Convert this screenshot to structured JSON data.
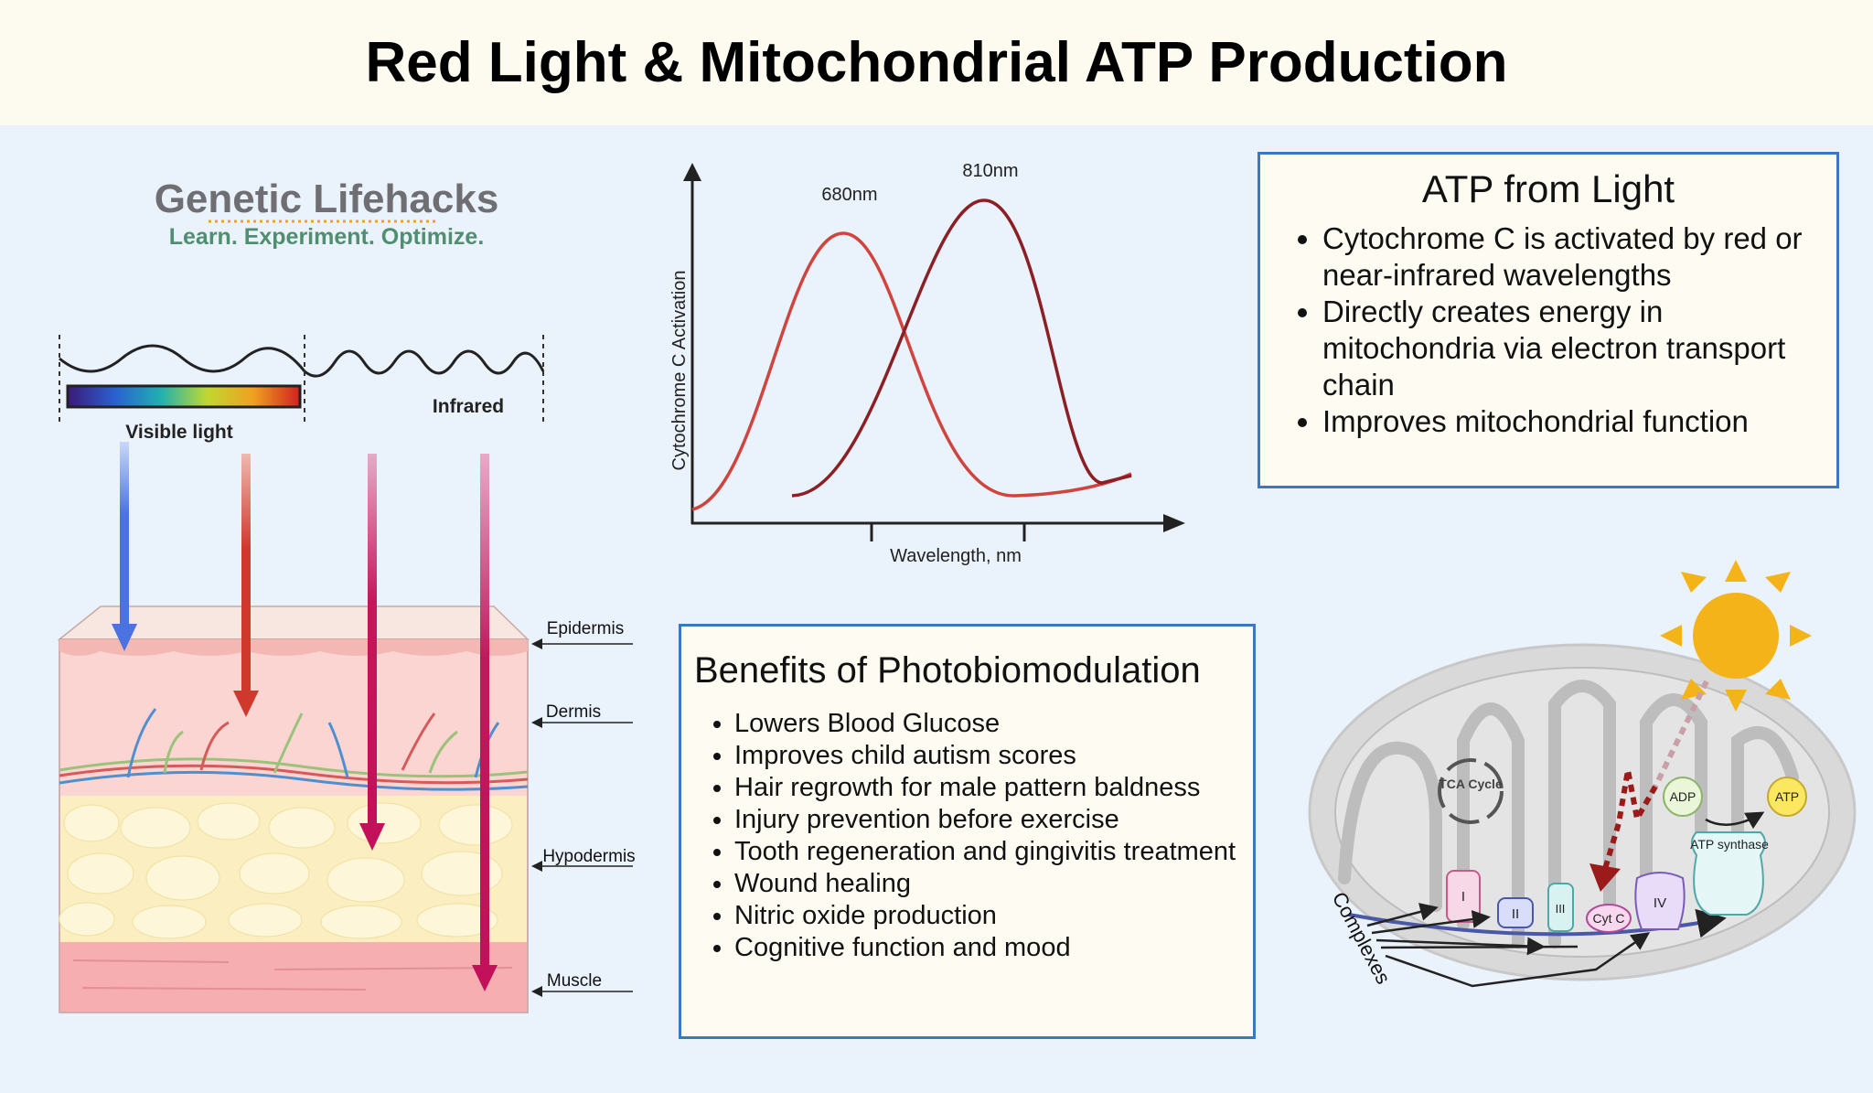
{
  "header": {
    "title": "Red Light & Mitochondrial ATP Production"
  },
  "logo": {
    "name": "Genetic Lifehacks",
    "tagline": "Learn. Experiment. Optimize."
  },
  "spectrum": {
    "visible": "Visible light",
    "infrared": "Infrared"
  },
  "skin": {
    "layers": [
      "Epidermis",
      "Dermis",
      "Hypodermis",
      "Muscle"
    ]
  },
  "graph": {
    "peaks": [
      "680nm",
      "810nm"
    ],
    "x_label": "Wavelength, nm",
    "y_label": "Cytochrome C Activation"
  },
  "atp_box": {
    "title": "ATP from Light",
    "bullets": [
      "Cytochrome C is activated by red or near-infrared wavelengths",
      "Directly creates energy in mitochondria via electron transport chain",
      "Improves mitochondrial function"
    ]
  },
  "benefits": {
    "title": "Benefits of Photobiomodulation",
    "bullets": [
      "Lowers Blood Glucose",
      "Improves child autism scores",
      "Hair regrowth for male pattern baldness",
      "Injury prevention before exercise",
      "Tooth regeneration and gingivitis treatment",
      "Wound healing",
      "Nitric oxide production",
      "Cognitive function and mood"
    ]
  },
  "mitochondria": {
    "tca": "TCA Cycle",
    "adp": "ADP",
    "atp": "ATP",
    "atp_synthase": "ATP synthase",
    "complexes": [
      "I",
      "II",
      "III",
      "Cyt C",
      "IV"
    ],
    "complexes_label": "Complexes"
  }
}
